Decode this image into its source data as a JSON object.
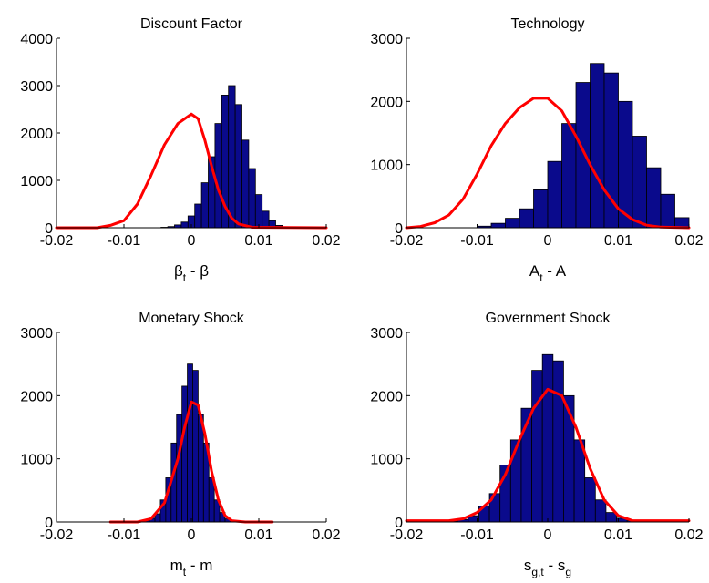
{
  "colors": {
    "bar_fill": "#0a0a8c",
    "bar_edge": "#000000",
    "curve": "#ff0000"
  },
  "chart_data": [
    {
      "type": "bar",
      "title": "Discount Factor",
      "xlabel": {
        "main": "β",
        "sub": "t",
        "rest": " - β"
      },
      "xlim": [
        -0.02,
        0.02
      ],
      "ylim": [
        0,
        4000
      ],
      "xticks": [
        "-0.02",
        "-0.01",
        "0",
        "0.01",
        "0.02"
      ],
      "yticks": [
        "0",
        "1000",
        "2000",
        "3000",
        "4000"
      ],
      "bin_width": 0.001,
      "bins": [
        [
          -0.004,
          10
        ],
        [
          -0.003,
          25
        ],
        [
          -0.002,
          60
        ],
        [
          -0.001,
          120
        ],
        [
          0.0,
          250
        ],
        [
          0.001,
          500
        ],
        [
          0.002,
          950
        ],
        [
          0.003,
          1500
        ],
        [
          0.004,
          2200
        ],
        [
          0.005,
          2800
        ],
        [
          0.006,
          3000
        ],
        [
          0.007,
          2600
        ],
        [
          0.008,
          1850
        ],
        [
          0.009,
          1250
        ],
        [
          0.01,
          700
        ],
        [
          0.011,
          350
        ],
        [
          0.012,
          150
        ],
        [
          0.013,
          50
        ]
      ],
      "curve": [
        [
          -0.02,
          0
        ],
        [
          -0.014,
          0
        ],
        [
          -0.012,
          50
        ],
        [
          -0.01,
          150
        ],
        [
          -0.008,
          500
        ],
        [
          -0.006,
          1100
        ],
        [
          -0.004,
          1750
        ],
        [
          -0.002,
          2200
        ],
        [
          0.0,
          2400
        ],
        [
          0.001,
          2300
        ],
        [
          0.002,
          1850
        ],
        [
          0.003,
          1300
        ],
        [
          0.004,
          800
        ],
        [
          0.005,
          450
        ],
        [
          0.006,
          200
        ],
        [
          0.007,
          80
        ],
        [
          0.009,
          10
        ],
        [
          0.02,
          0
        ]
      ]
    },
    {
      "type": "bar",
      "title": "Technology",
      "xlabel": {
        "main": "A",
        "sub": "t",
        "rest": " - A"
      },
      "xlim": [
        -0.02,
        0.02
      ],
      "ylim": [
        0,
        3000
      ],
      "xticks": [
        "-0.02",
        "-0.01",
        "0",
        "0.01",
        "0.02"
      ],
      "yticks": [
        "0",
        "1000",
        "2000",
        "3000"
      ],
      "bin_width": 0.002,
      "bins": [
        [
          -0.009,
          25
        ],
        [
          -0.007,
          70
        ],
        [
          -0.005,
          150
        ],
        [
          -0.003,
          300
        ],
        [
          -0.001,
          600
        ],
        [
          0.001,
          1050
        ],
        [
          0.003,
          1650
        ],
        [
          0.005,
          2300
        ],
        [
          0.007,
          2600
        ],
        [
          0.009,
          2450
        ],
        [
          0.011,
          2000
        ],
        [
          0.013,
          1450
        ],
        [
          0.015,
          950
        ],
        [
          0.017,
          530
        ],
        [
          0.019,
          160
        ]
      ],
      "curve": [
        [
          -0.02,
          0
        ],
        [
          -0.018,
          20
        ],
        [
          -0.016,
          80
        ],
        [
          -0.014,
          200
        ],
        [
          -0.012,
          450
        ],
        [
          -0.01,
          850
        ],
        [
          -0.008,
          1300
        ],
        [
          -0.006,
          1650
        ],
        [
          -0.004,
          1900
        ],
        [
          -0.002,
          2050
        ],
        [
          0.0,
          2050
        ],
        [
          0.002,
          1850
        ],
        [
          0.004,
          1450
        ],
        [
          0.006,
          1000
        ],
        [
          0.008,
          600
        ],
        [
          0.01,
          300
        ],
        [
          0.012,
          130
        ],
        [
          0.014,
          40
        ],
        [
          0.016,
          10
        ],
        [
          0.02,
          0
        ]
      ]
    },
    {
      "type": "bar",
      "title": "Monetary Shock",
      "xlabel": {
        "main": "m",
        "sub": "t",
        "rest": " - m"
      },
      "xlim": [
        -0.02,
        0.02
      ],
      "ylim": [
        0,
        3000
      ],
      "xticks": [
        "-0.02",
        "-0.01",
        "0",
        "0.01",
        "0.02"
      ],
      "yticks": [
        "0",
        "1000",
        "2000",
        "3000"
      ],
      "bin_width": 0.0008,
      "bins": [
        [
          -0.0066,
          20
        ],
        [
          -0.0058,
          60
        ],
        [
          -0.005,
          130
        ],
        [
          -0.0042,
          350
        ],
        [
          -0.0034,
          700
        ],
        [
          -0.0026,
          1250
        ],
        [
          -0.0018,
          1700
        ],
        [
          -0.001,
          2150
        ],
        [
          -0.0002,
          2500
        ],
        [
          0.0006,
          2400
        ],
        [
          0.0014,
          1700
        ],
        [
          0.0022,
          1250
        ],
        [
          0.003,
          700
        ],
        [
          0.0038,
          350
        ],
        [
          0.0046,
          150
        ],
        [
          0.0054,
          50
        ],
        [
          0.0062,
          20
        ]
      ],
      "curve": [
        [
          -0.012,
          0
        ],
        [
          -0.008,
          0
        ],
        [
          -0.006,
          50
        ],
        [
          -0.004,
          300
        ],
        [
          -0.002,
          1000
        ],
        [
          -0.001,
          1500
        ],
        [
          0.0,
          1900
        ],
        [
          0.001,
          1850
        ],
        [
          0.002,
          1400
        ],
        [
          0.003,
          800
        ],
        [
          0.004,
          350
        ],
        [
          0.005,
          100
        ],
        [
          0.006,
          20
        ],
        [
          0.008,
          0
        ],
        [
          0.012,
          0
        ]
      ]
    },
    {
      "type": "bar",
      "title": "Government Shock",
      "xlabel": {
        "main": "s",
        "sub": "g,t",
        "rest": " - s",
        "sub2": "g"
      },
      "xlim": [
        -0.02,
        0.02
      ],
      "ylim": [
        0,
        3000
      ],
      "xticks": [
        "-0.02",
        "-0.01",
        "0",
        "0.01",
        "0.02"
      ],
      "yticks": [
        "0",
        "1000",
        "2000",
        "3000"
      ],
      "bin_width": 0.0015,
      "bins": [
        [
          -0.0135,
          15
        ],
        [
          -0.012,
          40
        ],
        [
          -0.0105,
          100
        ],
        [
          -0.009,
          250
        ],
        [
          -0.0075,
          450
        ],
        [
          -0.006,
          900
        ],
        [
          -0.0045,
          1300
        ],
        [
          -0.003,
          1800
        ],
        [
          -0.0015,
          2400
        ],
        [
          0.0,
          2650
        ],
        [
          0.0015,
          2550
        ],
        [
          0.003,
          2000
        ],
        [
          0.0045,
          1300
        ],
        [
          0.006,
          700
        ],
        [
          0.0075,
          350
        ],
        [
          0.009,
          150
        ],
        [
          0.0105,
          60
        ],
        [
          0.012,
          20
        ]
      ],
      "curve": [
        [
          -0.02,
          20
        ],
        [
          -0.014,
          20
        ],
        [
          -0.012,
          50
        ],
        [
          -0.01,
          150
        ],
        [
          -0.008,
          350
        ],
        [
          -0.006,
          750
        ],
        [
          -0.004,
          1300
        ],
        [
          -0.002,
          1800
        ],
        [
          0.0,
          2100
        ],
        [
          0.002,
          2000
        ],
        [
          0.004,
          1500
        ],
        [
          0.006,
          850
        ],
        [
          0.008,
          350
        ],
        [
          0.01,
          100
        ],
        [
          0.012,
          20
        ],
        [
          0.02,
          20
        ]
      ]
    }
  ]
}
